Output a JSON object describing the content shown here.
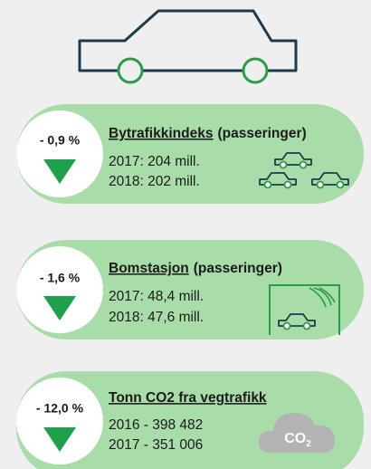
{
  "items": [
    {
      "percent": "- 0,9 %",
      "title": "Bytrafikkindeks",
      "subtitle": "(passeringer)",
      "lines": [
        "2017: 204 mill.",
        "2018: 202 mill."
      ]
    },
    {
      "percent": "- 1,6 %",
      "title": "Bomstasjon",
      "subtitle": "(passeringer)",
      "lines": [
        "2017: 48,4 mill.",
        "2018: 47,6 mill."
      ]
    },
    {
      "percent": "- 12,0 %",
      "title": "Tonn CO2 fra vegtrafikk",
      "lines": [
        "2016 - 398 482",
        "2017 - 351 006"
      ]
    }
  ],
  "cloud": {
    "text": "CO",
    "sub": "2"
  }
}
